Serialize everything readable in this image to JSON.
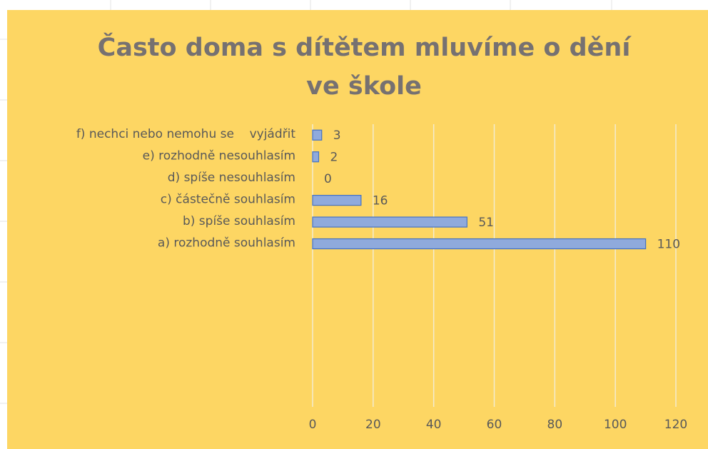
{
  "chart_data": {
    "type": "bar",
    "orientation": "horizontal",
    "title": "Často doma s dítětem mluvíme o dění ve škole",
    "categories": [
      "f) nechci nebo nemohu se    vyjádřit",
      "e) rozhodně nesouhlasím",
      "d) spíše nesouhlasím",
      "c) částečně souhlasím",
      "b) spíše souhlasím",
      "a) rozhodně souhlasím",
      null,
      null,
      null,
      null,
      null,
      null,
      null
    ],
    "values": [
      3,
      2,
      0,
      16,
      51,
      110,
      null,
      null,
      null,
      null,
      null,
      null,
      null
    ],
    "color": "#8faadc",
    "edge_color": "#4472c4",
    "xlim": [
      0,
      120
    ],
    "xticks": [
      0,
      20,
      40,
      60,
      80,
      100,
      120
    ],
    "grid": true
  }
}
